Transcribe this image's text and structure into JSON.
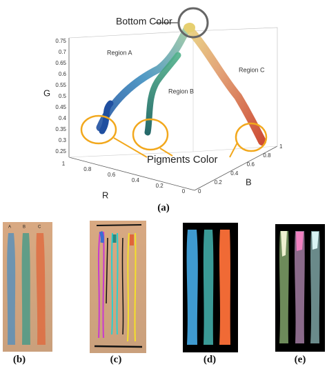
{
  "figure": {
    "panel_a": {
      "caption": "(a)",
      "annotations": {
        "bottom_color": "Bottom Color",
        "region_a": "Region A",
        "region_b": "Region B",
        "region_c": "Region C",
        "pigments_color": "Pigments Color"
      },
      "axes": {
        "g": {
          "label": "G",
          "ticks": [
            "0.75",
            "0.7",
            "0.65",
            "0.6",
            "0.55",
            "0.5",
            "0.45",
            "0.4",
            "0.35",
            "0.3",
            "0.25"
          ]
        },
        "r": {
          "label": "R",
          "ticks": [
            "1",
            "0.8",
            "0.6",
            "0.4",
            "0.2",
            "0"
          ]
        },
        "b": {
          "label": "B",
          "ticks": [
            "0",
            "0.2",
            "0.4",
            "0.6",
            "0.8",
            "1"
          ]
        }
      }
    },
    "panel_b": {
      "caption": "(b)",
      "strip_labels": [
        "A",
        "B",
        "C"
      ]
    },
    "panel_c": {
      "caption": "(c)"
    },
    "panel_d": {
      "caption": "(d)"
    },
    "panel_e": {
      "caption": "(e)"
    }
  }
}
